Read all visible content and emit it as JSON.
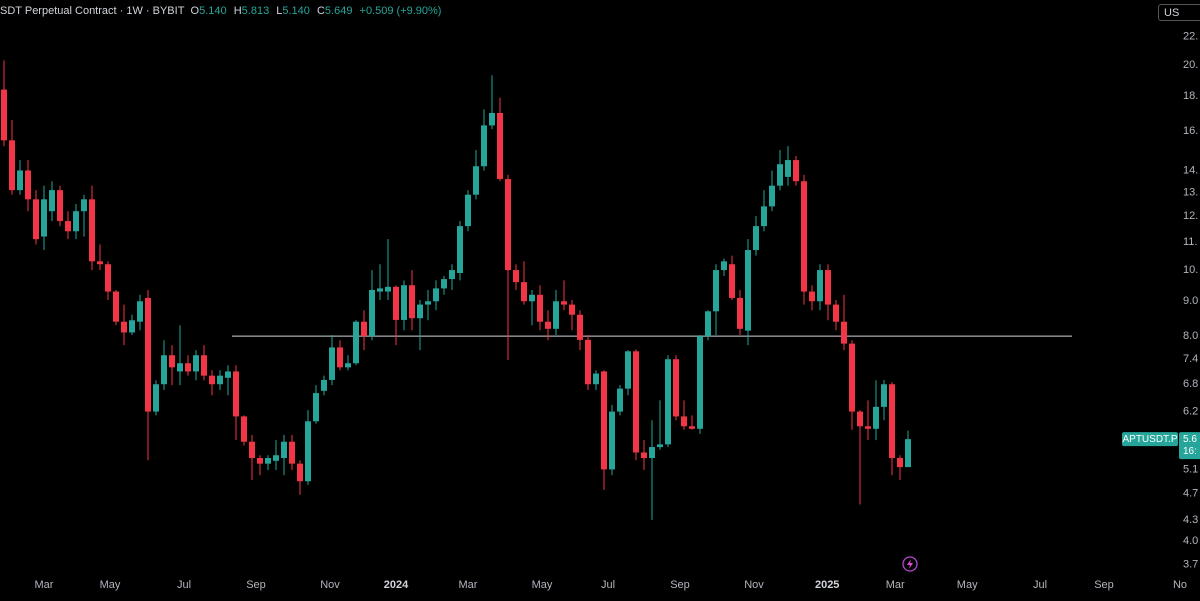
{
  "header": {
    "title": "SDT Perpetual Contract · 1W · BYBIT",
    "ohlc": [
      {
        "key": "O",
        "value": "5.140"
      },
      {
        "key": "H",
        "value": "5.813"
      },
      {
        "key": "L",
        "value": "5.140"
      },
      {
        "key": "C",
        "value": "5.649"
      }
    ],
    "change": "+0.509 (+9.90%)"
  },
  "currency": "US",
  "chart_data": {
    "type": "candlestick",
    "open": [
      18.4,
      15.5,
      13.1,
      14.0,
      12.7,
      11.2,
      12.2,
      13.1,
      11.8,
      11.4,
      12.2,
      12.7,
      10.3,
      10.2,
      9.3,
      8.4,
      8.1,
      8.4,
      9.1,
      6.2,
      6.8,
      7.5,
      7.1,
      7.3,
      7.1,
      7.5,
      7.0,
      6.8,
      6.95,
      7.1,
      6.1,
      5.6,
      5.3,
      5.2,
      5.25,
      5.3,
      5.6,
      5.2,
      4.9,
      6.0,
      6.65,
      6.9,
      7.7,
      7.2,
      7.3,
      8.4,
      8.0,
      9.3,
      9.3,
      9.45,
      8.45,
      9.5,
      8.5,
      8.9,
      9.0,
      9.4,
      9.7,
      9.9,
      11.6,
      12.9,
      14.2,
      16.3,
      17.0,
      13.6,
      10.0,
      9.6,
      9.0,
      9.2,
      8.4,
      8.2,
      9.0,
      8.9,
      8.6,
      7.9,
      6.8,
      7.1,
      5.1,
      6.2,
      6.7,
      7.6,
      5.4,
      5.3,
      5.5,
      5.55,
      7.4,
      6.1,
      5.9,
      5.85,
      8.0,
      8.7,
      10.0,
      10.2,
      9.1,
      8.15,
      10.7,
      11.6,
      12.4,
      13.3,
      13.7,
      14.5,
      13.5,
      9.3,
      9.0,
      10.0,
      8.9,
      8.4,
      7.8,
      6.2,
      5.9,
      5.85,
      6.3,
      6.8,
      5.3,
      5.14
    ],
    "high": [
      20.3,
      16.6,
      14.5,
      14.5,
      13.1,
      13.3,
      13.5,
      13.3,
      12.2,
      12.5,
      12.9,
      13.3,
      10.9,
      10.3,
      9.35,
      8.9,
      8.6,
      9.2,
      9.35,
      6.89,
      7.89,
      7.76,
      8.3,
      7.5,
      7.63,
      7.76,
      7.13,
      7.13,
      7.25,
      7.25,
      6.12,
      5.73,
      5.35,
      5.35,
      5.63,
      5.73,
      5.73,
      5.26,
      6.23,
      6.78,
      7.0,
      8.03,
      7.89,
      7.5,
      8.44,
      8.73,
      10.0,
      10.2,
      11.1,
      9.5,
      9.66,
      10.0,
      9.04,
      9.35,
      9.66,
      9.8,
      10.2,
      11.8,
      13.1,
      15.0,
      17.2,
      19.3,
      17.9,
      13.8,
      10.2,
      10.3,
      9.35,
      9.5,
      8.73,
      9.35,
      9.66,
      9.04,
      8.73,
      8.03,
      7.13,
      7.13,
      6.34,
      6.78,
      7.63,
      7.65,
      5.63,
      6.02,
      6.44,
      7.5,
      7.5,
      6.44,
      6.12,
      8.03,
      8.73,
      10.2,
      10.4,
      10.5,
      9.35,
      11.1,
      12.0,
      13.1,
      14.0,
      15.0,
      15.2,
      14.7,
      13.8,
      9.5,
      10.2,
      10.2,
      9.04,
      9.2,
      7.89,
      6.23,
      6.44,
      6.89,
      6.9,
      6.85,
      5.35,
      5.813
    ],
    "low": [
      15.2,
      12.9,
      12.9,
      12.2,
      10.9,
      10.7,
      11.8,
      11.6,
      11.1,
      11.1,
      11.2,
      10.0,
      10.0,
      9.04,
      8.3,
      7.76,
      8.03,
      8.16,
      5.26,
      6.12,
      6.67,
      6.78,
      6.78,
      7.0,
      6.89,
      6.89,
      6.55,
      6.67,
      6.55,
      5.63,
      5.53,
      4.92,
      5.0,
      5.09,
      5.09,
      5.0,
      5.09,
      4.68,
      4.84,
      5.95,
      6.55,
      6.78,
      7.13,
      7.13,
      7.25,
      7.63,
      7.89,
      9.04,
      9.04,
      7.76,
      8.16,
      8.16,
      7.63,
      8.44,
      8.73,
      9.2,
      9.35,
      9.66,
      11.4,
      12.7,
      14.0,
      16.1,
      13.5,
      7.38,
      9.35,
      8.9,
      8.3,
      8.16,
      7.89,
      8.03,
      8.73,
      8.16,
      7.63,
      6.67,
      6.67,
      4.76,
      5.0,
      6.12,
      6.55,
      5.26,
      5.09,
      4.3,
      5.45,
      5.5,
      6.02,
      5.83,
      5.83,
      5.75,
      7.89,
      8.03,
      9.8,
      9.04,
      8.03,
      7.76,
      10.5,
      11.4,
      12.2,
      13.1,
      13.3,
      13.3,
      8.9,
      8.73,
      8.73,
      8.44,
      8.16,
      7.63,
      5.83,
      4.53,
      5.63,
      5.63,
      6.02,
      5.0,
      4.92,
      5.14
    ],
    "close": [
      15.5,
      13.1,
      14.0,
      12.7,
      11.1,
      12.7,
      13.1,
      11.8,
      11.4,
      12.2,
      12.7,
      10.3,
      10.2,
      9.3,
      8.4,
      8.1,
      8.44,
      9.0,
      6.2,
      6.8,
      7.5,
      7.2,
      7.3,
      7.1,
      7.5,
      7.0,
      6.8,
      7.0,
      7.1,
      6.1,
      5.6,
      5.3,
      5.2,
      5.3,
      5.35,
      5.6,
      5.2,
      4.9,
      6.0,
      6.6,
      6.9,
      7.7,
      7.2,
      7.3,
      8.4,
      8.0,
      9.35,
      9.4,
      9.45,
      8.45,
      9.5,
      8.5,
      8.9,
      9.0,
      9.4,
      9.7,
      10.0,
      11.6,
      12.9,
      14.2,
      16.3,
      17.0,
      13.6,
      10.0,
      9.6,
      9.0,
      9.2,
      8.4,
      8.2,
      9.0,
      8.9,
      8.6,
      7.9,
      6.8,
      7.05,
      5.1,
      6.2,
      6.7,
      7.6,
      5.4,
      5.3,
      5.5,
      5.55,
      7.4,
      6.1,
      5.9,
      5.85,
      8.0,
      8.7,
      10.0,
      10.3,
      9.1,
      8.2,
      10.7,
      11.6,
      12.4,
      13.3,
      14.3,
      14.5,
      13.5,
      9.3,
      9.0,
      10.0,
      8.9,
      8.4,
      7.8,
      6.2,
      5.9,
      5.85,
      6.3,
      6.8,
      5.3,
      5.14,
      5.649
    ],
    "up_color": "#26a69a",
    "down_color": "#f23645",
    "xlim": [
      -0.5,
      149.5
    ],
    "xticks": [
      {
        "value": 5,
        "label": "Mar"
      },
      {
        "value": 13.25,
        "label": "May"
      },
      {
        "value": 22.5,
        "label": "Jul"
      },
      {
        "value": 31.5,
        "label": "Sep"
      },
      {
        "value": 40.75,
        "label": "Nov"
      },
      {
        "value": 49,
        "label": "2024"
      },
      {
        "value": 58,
        "label": "Mar"
      },
      {
        "value": 67.25,
        "label": "May"
      },
      {
        "value": 75.5,
        "label": "Jul"
      },
      {
        "value": 84.5,
        "label": "Sep"
      },
      {
        "value": 93.75,
        "label": "Nov"
      },
      {
        "value": 102.9,
        "label": "2025"
      },
      {
        "value": 111.4,
        "label": "Mar"
      },
      {
        "value": 120.4,
        "label": "May"
      },
      {
        "value": 129.5,
        "label": "Jul"
      },
      {
        "value": 137.5,
        "label": "Sep"
      },
      {
        "value": 147,
        "label": "No"
      }
    ],
    "ylim": [
      3.57,
      24.9
    ],
    "log_y": true,
    "yticks": [
      {
        "value": 22,
        "label": "22."
      },
      {
        "value": 20,
        "label": "20."
      },
      {
        "value": 18,
        "label": "18."
      },
      {
        "value": 16,
        "label": "16."
      },
      {
        "value": 14,
        "label": "14."
      },
      {
        "value": 13,
        "label": "13."
      },
      {
        "value": 12,
        "label": "12."
      },
      {
        "value": 11,
        "label": "11."
      },
      {
        "value": 10,
        "label": "10."
      },
      {
        "value": 9,
        "label": "9.0"
      },
      {
        "value": 8,
        "label": "8.0"
      },
      {
        "value": 7.4,
        "label": "7.4"
      },
      {
        "value": 6.8,
        "label": "6.8"
      },
      {
        "value": 6.2,
        "label": "6.2"
      },
      {
        "value": 5.1,
        "label": "5.1"
      },
      {
        "value": 4.7,
        "label": "4.7"
      },
      {
        "value": 4.3,
        "label": "4.3"
      },
      {
        "value": 4,
        "label": "4.0"
      },
      {
        "value": 3.7,
        "label": "3.7"
      }
    ],
    "hline": {
      "value": 8.0,
      "x": [
        28.5,
        133.5
      ],
      "color": "#d1d4dc"
    },
    "symbol_label": "APTUSDT.P",
    "last_price_label": "5.6",
    "countdown": "16:"
  }
}
